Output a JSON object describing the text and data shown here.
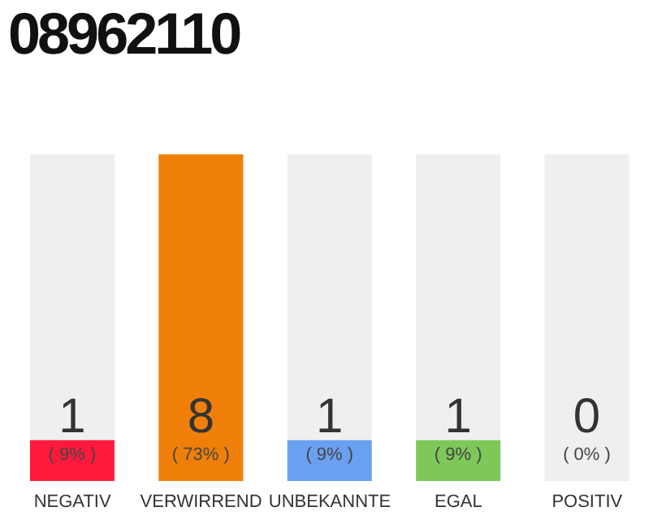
{
  "chart_data": {
    "type": "bar",
    "title": "08962110",
    "categories": [
      "NEGATIV",
      "VERWIRREND",
      "UNBEKANNTE",
      "EGAL",
      "POSITIV"
    ],
    "values": [
      1,
      8,
      1,
      1,
      0
    ],
    "colors": [
      "#ff1a3c",
      "#f07f0a",
      "#6aa0f0",
      "#7ec85a",
      "#d9d9d9"
    ],
    "data_labels": true,
    "annotations": [
      "( 9% )",
      "( 73% )",
      "( 9% )",
      "( 9% )",
      "( 0% )"
    ],
    "grid": false,
    "legend": false
  }
}
